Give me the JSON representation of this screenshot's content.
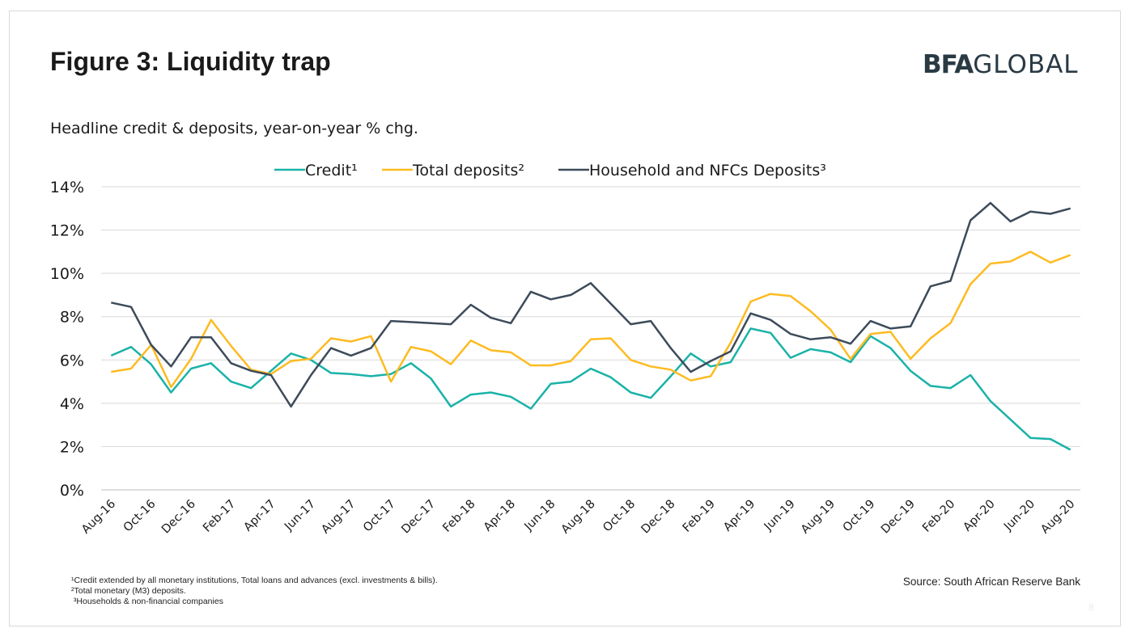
{
  "title": "Figure 3: Liquidity trap",
  "logo": {
    "part1": "BFA",
    "part2": "GLOBAL"
  },
  "subtitle": "Headline credit & deposits, year-on-year % chg.",
  "source": "Source: South African Reserve Bank",
  "footnotes": [
    "¹Credit extended by all monetary institutions, Total loans and advances (excl. investments & bills).",
    "²Total monetary (M3) deposits.",
    " ³Households & non-financial companies"
  ],
  "page_number": "8",
  "chart_data": {
    "type": "line",
    "x": [
      "Aug-16",
      "Sep-16",
      "Oct-16",
      "Nov-16",
      "Dec-16",
      "Jan-17",
      "Feb-17",
      "Mar-17",
      "Apr-17",
      "May-17",
      "Jun-17",
      "Jul-17",
      "Aug-17",
      "Sep-17",
      "Oct-17",
      "Nov-17",
      "Dec-17",
      "Jan-18",
      "Feb-18",
      "Mar-18",
      "Apr-18",
      "May-18",
      "Jun-18",
      "Jul-18",
      "Aug-18",
      "Sep-18",
      "Oct-18",
      "Nov-18",
      "Dec-18",
      "Jan-19",
      "Feb-19",
      "Mar-19",
      "Apr-19",
      "May-19",
      "Jun-19",
      "Jul-19",
      "Aug-19",
      "Sep-19",
      "Oct-19",
      "Nov-19",
      "Dec-19",
      "Jan-20",
      "Feb-20",
      "Mar-20",
      "Apr-20",
      "May-20",
      "Jun-20",
      "Jul-20",
      "Aug-20"
    ],
    "xtick_labels": [
      "Aug-16",
      "Oct-16",
      "Dec-16",
      "Feb-17",
      "Apr-17",
      "Jun-17",
      "Aug-17",
      "Oct-17",
      "Dec-17",
      "Feb-18",
      "Apr-18",
      "Jun-18",
      "Aug-18",
      "Oct-18",
      "Dec-18",
      "Feb-19",
      "Apr-19",
      "Jun-19",
      "Aug-19",
      "Oct-19",
      "Dec-19",
      "Feb-20",
      "Apr-20",
      "Jun-20",
      "Aug-20"
    ],
    "yticks": [
      "0%",
      "2%",
      "4%",
      "6%",
      "8%",
      "10%",
      "12%",
      "14%"
    ],
    "ylim": [
      0,
      14
    ],
    "grid": true,
    "legend_position": "top",
    "series": [
      {
        "name": "Credit¹",
        "color": "#1ab2a8",
        "values": [
          6.2,
          6.6,
          5.8,
          4.5,
          5.6,
          5.85,
          5.0,
          4.7,
          5.5,
          6.3,
          6.0,
          5.4,
          5.35,
          5.25,
          5.35,
          5.85,
          5.15,
          3.85,
          4.4,
          4.5,
          4.3,
          3.75,
          4.9,
          5.0,
          5.6,
          5.2,
          4.5,
          4.25,
          5.25,
          6.3,
          5.7,
          5.9,
          7.45,
          7.25,
          6.1,
          6.5,
          6.35,
          5.9,
          7.1,
          6.55,
          5.5,
          4.8,
          4.7,
          5.3,
          4.1,
          3.25,
          2.4,
          2.35,
          1.85
        ]
      },
      {
        "name": "Total deposits²",
        "color": "#fdbb21",
        "values": [
          5.45,
          5.6,
          6.7,
          4.75,
          6.05,
          7.85,
          6.65,
          5.55,
          5.35,
          5.95,
          6.05,
          7.0,
          6.85,
          7.1,
          5.0,
          6.6,
          6.4,
          5.8,
          6.9,
          6.45,
          6.35,
          5.75,
          5.75,
          5.95,
          6.95,
          7.0,
          6.0,
          5.7,
          5.55,
          5.05,
          5.25,
          6.8,
          8.7,
          9.05,
          8.95,
          8.25,
          7.4,
          6.05,
          7.2,
          7.3,
          6.05,
          7.0,
          7.7,
          9.5,
          10.45,
          10.55,
          11.0,
          10.5,
          10.85
        ]
      },
      {
        "name": "Household and NFCs Deposits³",
        "color": "#3d4b5a",
        "values": [
          8.65,
          8.45,
          6.7,
          5.7,
          7.05,
          7.05,
          5.85,
          5.5,
          5.3,
          3.85,
          5.3,
          6.55,
          6.2,
          6.55,
          7.8,
          7.75,
          7.7,
          7.65,
          8.55,
          7.95,
          7.7,
          9.15,
          8.8,
          9.0,
          9.55,
          8.6,
          7.65,
          7.8,
          6.55,
          5.45,
          5.95,
          6.4,
          8.15,
          7.85,
          7.2,
          6.95,
          7.05,
          6.75,
          7.8,
          7.45,
          7.55,
          9.4,
          9.65,
          12.45,
          13.25,
          12.4,
          12.85,
          12.75,
          13.0
        ]
      }
    ]
  }
}
